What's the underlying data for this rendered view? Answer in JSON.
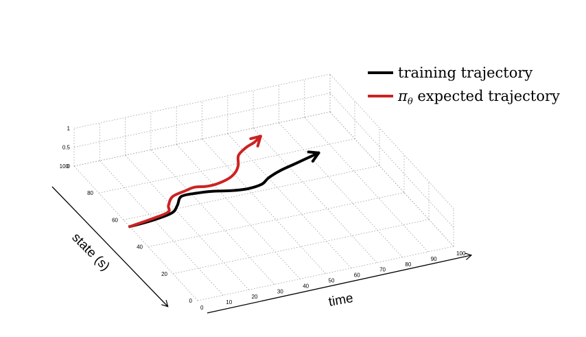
{
  "chart_data": {
    "type": "line",
    "x_label": "time",
    "y_label": "state (s)",
    "x_ticks": [
      "0",
      "10",
      "20",
      "30",
      "40",
      "50",
      "60",
      "70",
      "80",
      "90",
      "100"
    ],
    "y_ticks": [
      "0",
      "20",
      "40",
      "60",
      "80",
      "100"
    ],
    "z_ticks": [
      "0",
      "0.5",
      "1"
    ],
    "x_range": [
      0,
      100
    ],
    "y_range": [
      0,
      100
    ],
    "z_range": [
      0,
      1
    ],
    "grid": true,
    "legend_position": "top-right",
    "series": [
      {
        "name": "training trajectory",
        "color": "#000000",
        "points": [
          [
            0,
            55
          ],
          [
            10,
            56
          ],
          [
            18,
            58
          ],
          [
            22,
            62
          ],
          [
            26,
            67
          ],
          [
            32,
            67
          ],
          [
            38,
            66
          ],
          [
            44,
            64
          ],
          [
            50,
            63
          ],
          [
            56,
            64
          ],
          [
            60,
            67
          ],
          [
            66,
            70
          ],
          [
            72,
            72
          ],
          [
            78,
            74
          ],
          [
            84,
            76
          ]
        ]
      },
      {
        "name": "π_θ expected trajectory",
        "name_prefix": "π",
        "name_subscript": "θ",
        "name_suffix": " expected trajectory",
        "color": "#cc2222",
        "points": [
          [
            0,
            55
          ],
          [
            10,
            57
          ],
          [
            17,
            59
          ],
          [
            19,
            63
          ],
          [
            23,
            68
          ],
          [
            29,
            70
          ],
          [
            33,
            71
          ],
          [
            37,
            70
          ],
          [
            41,
            70
          ],
          [
            47,
            72
          ],
          [
            51,
            75
          ],
          [
            54,
            79
          ],
          [
            57,
            85
          ],
          [
            62,
            89
          ],
          [
            66,
            91
          ],
          [
            70,
            94
          ]
        ]
      }
    ]
  }
}
